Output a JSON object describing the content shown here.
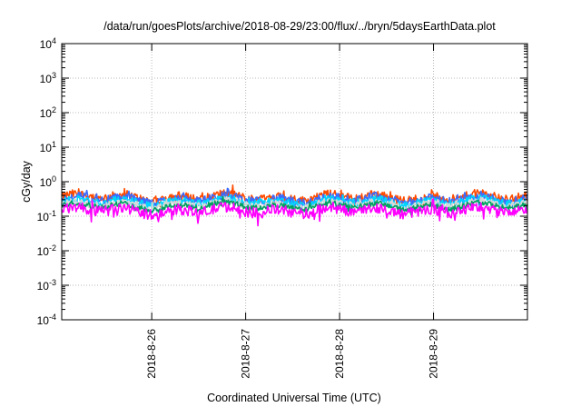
{
  "chart_data": {
    "type": "line",
    "title": "/data/run/goesPlots/archive/2018-08-29/23:00/flux/../bryn/5daysEarthData.plot",
    "xlabel": "Coordinated Universal Time (UTC)",
    "ylabel": "cGy/day",
    "y_scale": "log",
    "ylim": [
      0.0001,
      10000
    ],
    "xlim": [
      "2018-08-25 01:00",
      "2018-08-30 00:00"
    ],
    "x_ticks": [
      "2018-8-26",
      "2018-8-27",
      "2018-8-28",
      "2018-8-29"
    ],
    "y_ticks": [
      {
        "base": "10",
        "exp": "4"
      },
      {
        "base": "10",
        "exp": "3"
      },
      {
        "base": "10",
        "exp": "2"
      },
      {
        "base": "10",
        "exp": "1"
      },
      {
        "base": "10",
        "exp": "0"
      },
      {
        "base": "10",
        "exp": "-1"
      },
      {
        "base": "10",
        "exp": "-2"
      },
      {
        "base": "10",
        "exp": "-3"
      },
      {
        "base": "10",
        "exp": "-4"
      }
    ],
    "grid": true,
    "series": [
      {
        "color": "#ff4b00",
        "base": 0.36,
        "spread": 0.45
      },
      {
        "color": "#3a6bff",
        "base": 0.31,
        "spread": 0.45
      },
      {
        "color": "#00d7ff",
        "base": 0.26,
        "spread": 0.4
      },
      {
        "color": "#d8d8d8",
        "base": 0.22,
        "spread": 0.35
      },
      {
        "color": "#00a060",
        "base": 0.195,
        "spread": 0.3
      },
      {
        "color": "#ff00ff",
        "base": 0.145,
        "spread": 0.55
      }
    ]
  }
}
